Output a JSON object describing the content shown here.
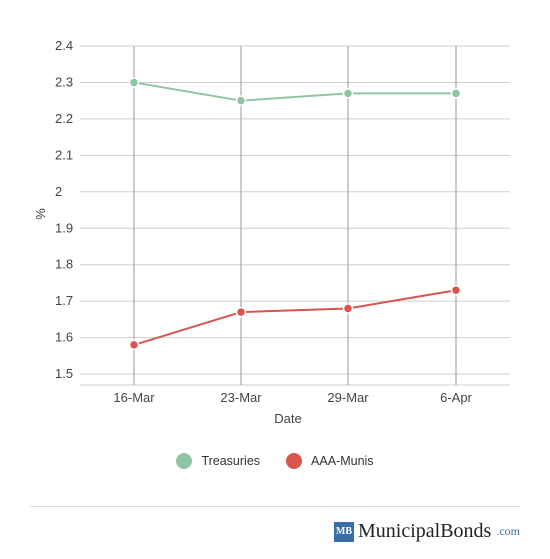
{
  "chart_data": {
    "type": "line",
    "categories": [
      "16-Mar",
      "23-Mar",
      "29-Mar",
      "6-Apr"
    ],
    "series": [
      {
        "name": "Treasuries",
        "values": [
          2.3,
          2.25,
          2.27,
          2.27
        ],
        "color": "#8fc5a3"
      },
      {
        "name": "AAA-Munis",
        "values": [
          1.58,
          1.67,
          1.68,
          1.73
        ],
        "color": "#d9534f"
      }
    ],
    "y_ticks": [
      {
        "value": 2.4,
        "label": "2.4"
      },
      {
        "value": 2.3,
        "label": "2.3"
      },
      {
        "value": 2.2,
        "label": "2.2"
      },
      {
        "value": 2.1,
        "label": "2.1"
      },
      {
        "value": 2.0,
        "label": "2"
      },
      {
        "value": 1.9,
        "label": "1.9"
      },
      {
        "value": 1.8,
        "label": "1.8"
      },
      {
        "value": 1.7,
        "label": "1.7"
      },
      {
        "value": 1.6,
        "label": "1.6"
      },
      {
        "value": 1.5,
        "label": "1.5"
      }
    ],
    "xlabel": "Date",
    "ylabel": "%",
    "ylim": [
      1.47,
      2.4
    ],
    "grid": true,
    "legend_position": "bottom-center"
  },
  "legend": {
    "items": [
      {
        "label": "Treasuries",
        "color": "#8fc5a3"
      },
      {
        "label": "AAA-Munis",
        "color": "#d9534f"
      }
    ]
  },
  "footer": {
    "logo_mark": "MB",
    "logo_name": "MunicipalBonds",
    "logo_tld": ".com"
  }
}
